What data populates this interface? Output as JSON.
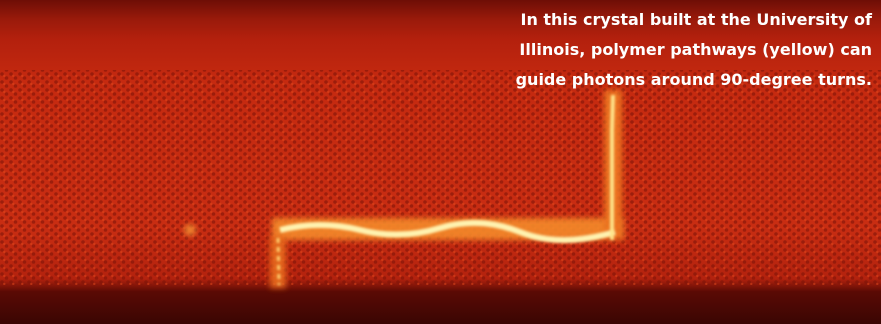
{
  "caption": {
    "lines": [
      "In this crystal built at the University of",
      "Illinois, polymer pathways (yellow) can",
      "guide photons around 90-degree turns."
    ]
  }
}
